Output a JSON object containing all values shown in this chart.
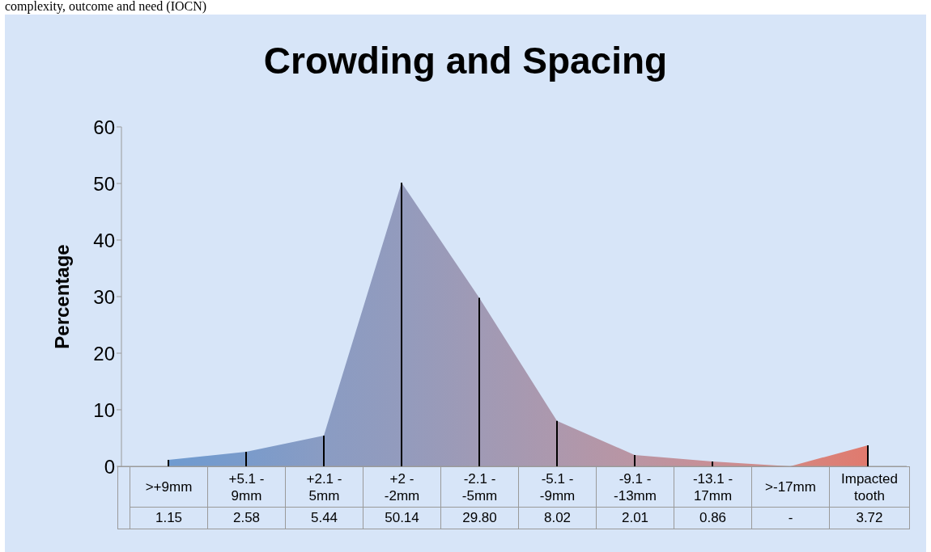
{
  "chart_data": {
    "type": "area",
    "title": "Crowding and Spacing",
    "ylabel": "Percentage",
    "annotations": [
      "complexity, outcome and need (IOCN)"
    ],
    "categories": [
      ">+9mm",
      "+5.1 - 9mm",
      "+2.1 - 5mm",
      "+2 - -2mm",
      "-2.1 - -5mm",
      "-5.1 - -9mm",
      "-9.1 - -13mm",
      "-13.1 - 17mm",
      ">-17mm",
      "Impacted tooth"
    ],
    "values": [
      1.15,
      2.58,
      5.44,
      50.14,
      29.8,
      8.02,
      2.01,
      0.86,
      0,
      3.72
    ],
    "value_labels": [
      "1.15",
      "2.58",
      "5.44",
      "50.14",
      "29.80",
      "8.02",
      "2.01",
      "0.86",
      "-",
      "3.72"
    ],
    "colors": [
      "#6f9bd0",
      "#7a9bcb",
      "#8a9cc3",
      "#939bbd",
      "#a09ab5",
      "#ad98ad",
      "#ba95a3",
      "#c88f96",
      "#d68781",
      "#e07a6e"
    ],
    "ylim": [
      0,
      60
    ],
    "yticks": [
      0,
      10,
      20,
      30,
      40,
      50,
      60
    ]
  }
}
